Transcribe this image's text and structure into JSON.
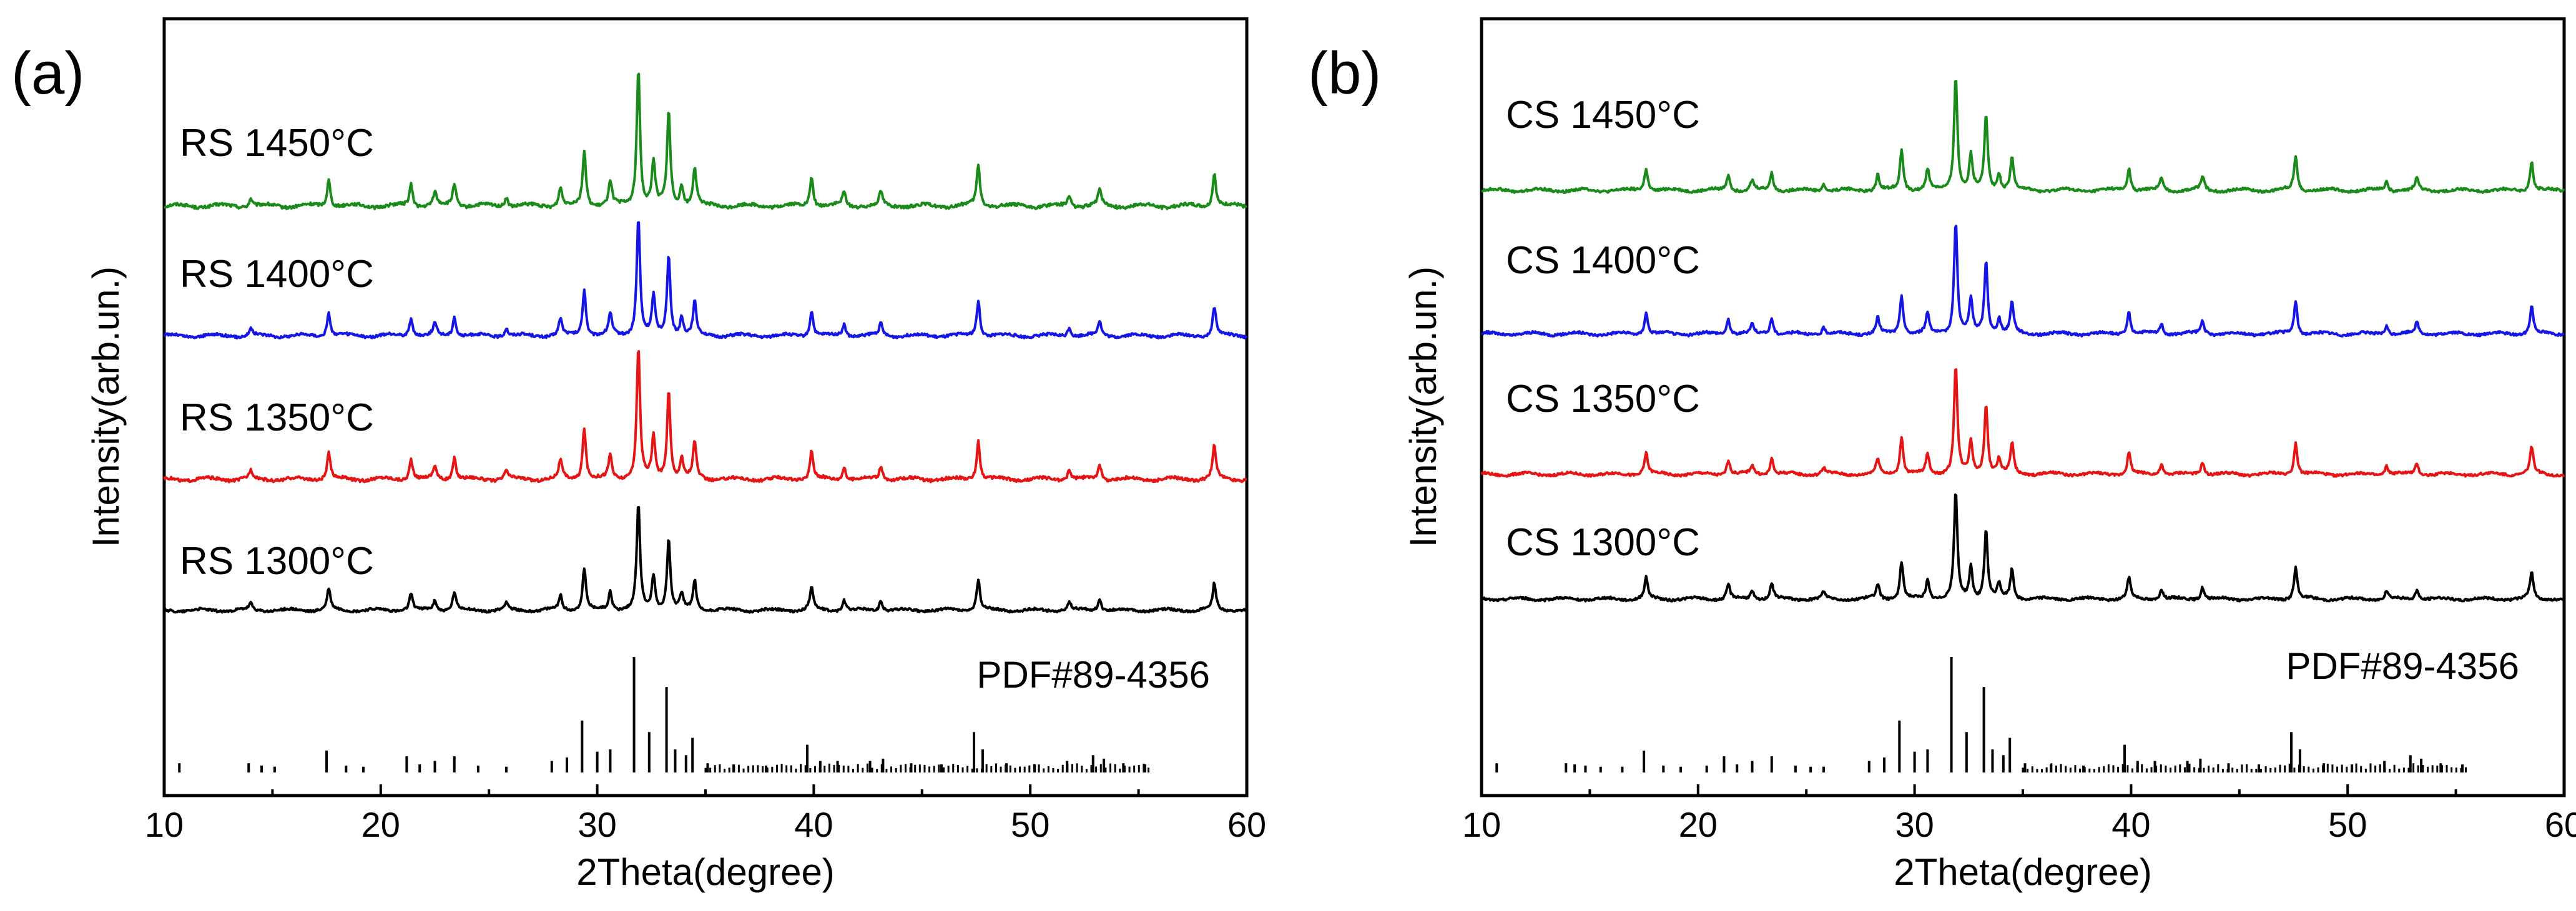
{
  "chart_data": [
    {
      "panel": "(a)",
      "type": "line",
      "subtype": "stacked XRD patterns with reference stick pattern",
      "xlabel": "2Theta(degree)",
      "ylabel": "Intensity(arb.un.)",
      "xlim": [
        10,
        60
      ],
      "xticks": [
        10,
        20,
        30,
        40,
        50,
        60
      ],
      "yticks_shown": false,
      "series": [
        {
          "name": "RS 1450°C",
          "color": "#1a8a1a"
        },
        {
          "name": "RS 1400°C",
          "color": "#1515e6"
        },
        {
          "name": "RS 1350°C",
          "color": "#e61515"
        },
        {
          "name": "RS 1300°C",
          "color": "#000000"
        }
      ],
      "reference": {
        "name": "PDF#89-4356",
        "color": "#000000"
      },
      "peaks": [
        {
          "x": 14.0,
          "h": 0.06
        },
        {
          "x": 17.6,
          "h": 0.2
        },
        {
          "x": 21.4,
          "h": 0.16
        },
        {
          "x": 22.5,
          "h": 0.1
        },
        {
          "x": 23.4,
          "h": 0.17
        },
        {
          "x": 25.8,
          "h": 0.07
        },
        {
          "x": 28.3,
          "h": 0.14
        },
        {
          "x": 29.4,
          "h": 0.4
        },
        {
          "x": 30.6,
          "h": 0.18
        },
        {
          "x": 31.9,
          "h": 1.0
        },
        {
          "x": 32.6,
          "h": 0.32
        },
        {
          "x": 33.3,
          "h": 0.68
        },
        {
          "x": 33.9,
          "h": 0.15
        },
        {
          "x": 34.5,
          "h": 0.28
        },
        {
          "x": 39.9,
          "h": 0.22
        },
        {
          "x": 41.4,
          "h": 0.1
        },
        {
          "x": 43.1,
          "h": 0.1
        },
        {
          "x": 47.6,
          "h": 0.3
        },
        {
          "x": 51.8,
          "h": 0.08
        },
        {
          "x": 53.2,
          "h": 0.12
        },
        {
          "x": 58.5,
          "h": 0.25
        }
      ],
      "sticks": [
        {
          "x": 10.7,
          "h": 0.08
        },
        {
          "x": 13.9,
          "h": 0.08
        },
        {
          "x": 14.5,
          "h": 0.06
        },
        {
          "x": 15.1,
          "h": 0.05
        },
        {
          "x": 17.5,
          "h": 0.19
        },
        {
          "x": 18.4,
          "h": 0.06
        },
        {
          "x": 19.2,
          "h": 0.05
        },
        {
          "x": 21.2,
          "h": 0.14
        },
        {
          "x": 21.8,
          "h": 0.07
        },
        {
          "x": 22.5,
          "h": 0.1
        },
        {
          "x": 23.4,
          "h": 0.14
        },
        {
          "x": 24.5,
          "h": 0.06
        },
        {
          "x": 25.8,
          "h": 0.05
        },
        {
          "x": 27.9,
          "h": 0.1
        },
        {
          "x": 28.6,
          "h": 0.13
        },
        {
          "x": 29.3,
          "h": 0.45
        },
        {
          "x": 30.0,
          "h": 0.18
        },
        {
          "x": 30.6,
          "h": 0.2
        },
        {
          "x": 31.7,
          "h": 1.0
        },
        {
          "x": 32.4,
          "h": 0.35
        },
        {
          "x": 33.2,
          "h": 0.74
        },
        {
          "x": 33.6,
          "h": 0.2
        },
        {
          "x": 34.1,
          "h": 0.15
        },
        {
          "x": 34.4,
          "h": 0.3
        },
        {
          "x": 35.1,
          "h": 0.08
        },
        {
          "x": 36.3,
          "h": 0.07
        },
        {
          "x": 37.8,
          "h": 0.06
        },
        {
          "x": 39.7,
          "h": 0.24
        },
        {
          "x": 40.3,
          "h": 0.1
        },
        {
          "x": 41.1,
          "h": 0.1
        },
        {
          "x": 42.6,
          "h": 0.1
        },
        {
          "x": 43.2,
          "h": 0.12
        },
        {
          "x": 44.5,
          "h": 0.08
        },
        {
          "x": 45.9,
          "h": 0.07
        },
        {
          "x": 47.4,
          "h": 0.35
        },
        {
          "x": 47.8,
          "h": 0.2
        },
        {
          "x": 48.9,
          "h": 0.08
        },
        {
          "x": 50.2,
          "h": 0.07
        },
        {
          "x": 51.7,
          "h": 0.1
        },
        {
          "x": 52.9,
          "h": 0.15
        },
        {
          "x": 53.4,
          "h": 0.12
        },
        {
          "x": 54.3,
          "h": 0.08
        },
        {
          "x": 55.3,
          "h": 0.07
        }
      ]
    },
    {
      "panel": "(b)",
      "type": "line",
      "subtype": "stacked XRD patterns with reference stick pattern",
      "xlabel": "2Theta(degree)",
      "ylabel": "Intensity(arb.un.)",
      "xlim": [
        10,
        60
      ],
      "xticks": [
        10,
        20,
        30,
        40,
        50,
        60
      ],
      "yticks_shown": false,
      "series": [
        {
          "name": "CS 1450°C",
          "color": "#1a8a1a"
        },
        {
          "name": "CS 1400°C",
          "color": "#1515e6"
        },
        {
          "name": "CS 1350°C",
          "color": "#e61515"
        },
        {
          "name": "CS 1300°C",
          "color": "#000000"
        }
      ],
      "reference": {
        "name": "PDF#89-4356",
        "color": "#000000"
      },
      "peaks": [
        {
          "x": 17.6,
          "h": 0.2
        },
        {
          "x": 21.4,
          "h": 0.14
        },
        {
          "x": 22.5,
          "h": 0.08
        },
        {
          "x": 23.4,
          "h": 0.15
        },
        {
          "x": 25.8,
          "h": 0.06
        },
        {
          "x": 28.3,
          "h": 0.14
        },
        {
          "x": 29.4,
          "h": 0.35
        },
        {
          "x": 30.6,
          "h": 0.18
        },
        {
          "x": 31.9,
          "h": 1.0
        },
        {
          "x": 32.6,
          "h": 0.3
        },
        {
          "x": 33.3,
          "h": 0.65
        },
        {
          "x": 33.9,
          "h": 0.14
        },
        {
          "x": 34.5,
          "h": 0.28
        },
        {
          "x": 39.9,
          "h": 0.2
        },
        {
          "x": 41.4,
          "h": 0.1
        },
        {
          "x": 43.3,
          "h": 0.12
        },
        {
          "x": 47.6,
          "h": 0.3
        },
        {
          "x": 51.8,
          "h": 0.08
        },
        {
          "x": 53.2,
          "h": 0.1
        },
        {
          "x": 58.5,
          "h": 0.25
        }
      ],
      "sticks": [
        {
          "x": 10.7,
          "h": 0.08
        },
        {
          "x": 13.9,
          "h": 0.08
        },
        {
          "x": 14.3,
          "h": 0.07
        },
        {
          "x": 14.8,
          "h": 0.06
        },
        {
          "x": 15.5,
          "h": 0.05
        },
        {
          "x": 16.5,
          "h": 0.05
        },
        {
          "x": 17.5,
          "h": 0.19
        },
        {
          "x": 18.4,
          "h": 0.06
        },
        {
          "x": 19.2,
          "h": 0.05
        },
        {
          "x": 20.4,
          "h": 0.06
        },
        {
          "x": 21.2,
          "h": 0.14
        },
        {
          "x": 21.8,
          "h": 0.07
        },
        {
          "x": 22.5,
          "h": 0.1
        },
        {
          "x": 23.4,
          "h": 0.14
        },
        {
          "x": 24.5,
          "h": 0.06
        },
        {
          "x": 25.2,
          "h": 0.05
        },
        {
          "x": 25.8,
          "h": 0.05
        },
        {
          "x": 27.9,
          "h": 0.1
        },
        {
          "x": 28.6,
          "h": 0.13
        },
        {
          "x": 29.3,
          "h": 0.45
        },
        {
          "x": 30.0,
          "h": 0.18
        },
        {
          "x": 30.6,
          "h": 0.2
        },
        {
          "x": 31.7,
          "h": 1.0
        },
        {
          "x": 32.4,
          "h": 0.35
        },
        {
          "x": 33.2,
          "h": 0.74
        },
        {
          "x": 33.6,
          "h": 0.2
        },
        {
          "x": 34.1,
          "h": 0.15
        },
        {
          "x": 34.4,
          "h": 0.3
        },
        {
          "x": 35.1,
          "h": 0.08
        },
        {
          "x": 36.3,
          "h": 0.07
        },
        {
          "x": 37.8,
          "h": 0.06
        },
        {
          "x": 39.7,
          "h": 0.24
        },
        {
          "x": 40.3,
          "h": 0.1
        },
        {
          "x": 41.1,
          "h": 0.1
        },
        {
          "x": 42.6,
          "h": 0.1
        },
        {
          "x": 43.2,
          "h": 0.12
        },
        {
          "x": 44.5,
          "h": 0.08
        },
        {
          "x": 45.9,
          "h": 0.07
        },
        {
          "x": 47.4,
          "h": 0.35
        },
        {
          "x": 47.8,
          "h": 0.2
        },
        {
          "x": 48.9,
          "h": 0.08
        },
        {
          "x": 50.2,
          "h": 0.07
        },
        {
          "x": 51.7,
          "h": 0.1
        },
        {
          "x": 52.9,
          "h": 0.15
        },
        {
          "x": 53.4,
          "h": 0.12
        },
        {
          "x": 54.3,
          "h": 0.08
        },
        {
          "x": 55.3,
          "h": 0.07
        }
      ]
    }
  ]
}
